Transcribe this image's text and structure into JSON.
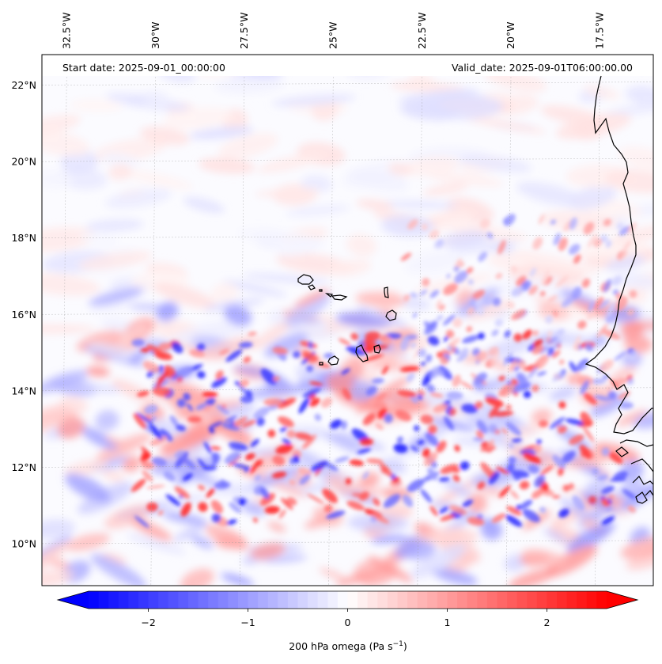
{
  "header": {
    "start_date": "Start date: 2025-09-01_00:00:00",
    "valid_date": "Valid_date: 2025-09-01T06:00:00.00"
  },
  "map": {
    "region": "Eastern tropical Atlantic / West Africa",
    "lon_range": [
      -33.2,
      -16.0
    ],
    "lat_range": [
      8.9,
      22.8
    ],
    "lon_ticks": [
      {
        "value": -32.5,
        "label": "32.5°W"
      },
      {
        "value": -30.0,
        "label": "30°W"
      },
      {
        "value": -27.5,
        "label": "27.5°W"
      },
      {
        "value": -25.0,
        "label": "25°W"
      },
      {
        "value": -22.5,
        "label": "22.5°W"
      },
      {
        "value": -20.0,
        "label": "20°W"
      },
      {
        "value": -17.5,
        "label": "17.5°W"
      }
    ],
    "lat_ticks": [
      {
        "value": 22,
        "label": "22°N"
      },
      {
        "value": 20,
        "label": "20°N"
      },
      {
        "value": 18,
        "label": "18°N"
      },
      {
        "value": 16,
        "label": "16°N"
      },
      {
        "value": 14,
        "label": "14°N"
      },
      {
        "value": 12,
        "label": "12°N"
      },
      {
        "value": 10,
        "label": "10°N"
      }
    ],
    "gridlines": true,
    "coastline_color": "#000000",
    "features": [
      "Cape Verde islands",
      "West African coastline"
    ]
  },
  "colorbar": {
    "label": "200 hPa omega (Pa s",
    "label_superscript": "−1",
    "label_close": ")",
    "range": [
      -2.6,
      2.6
    ],
    "extend": "both",
    "colormap": "bwr",
    "low_color": "#0000ff",
    "mid_color": "#ffffff",
    "high_color": "#ff0000",
    "ticks": [
      {
        "value": -2,
        "label": "−2"
      },
      {
        "value": -1,
        "label": "−1"
      },
      {
        "value": 0,
        "label": "0"
      },
      {
        "value": 1,
        "label": "1"
      },
      {
        "value": 2,
        "label": "2"
      }
    ]
  }
}
